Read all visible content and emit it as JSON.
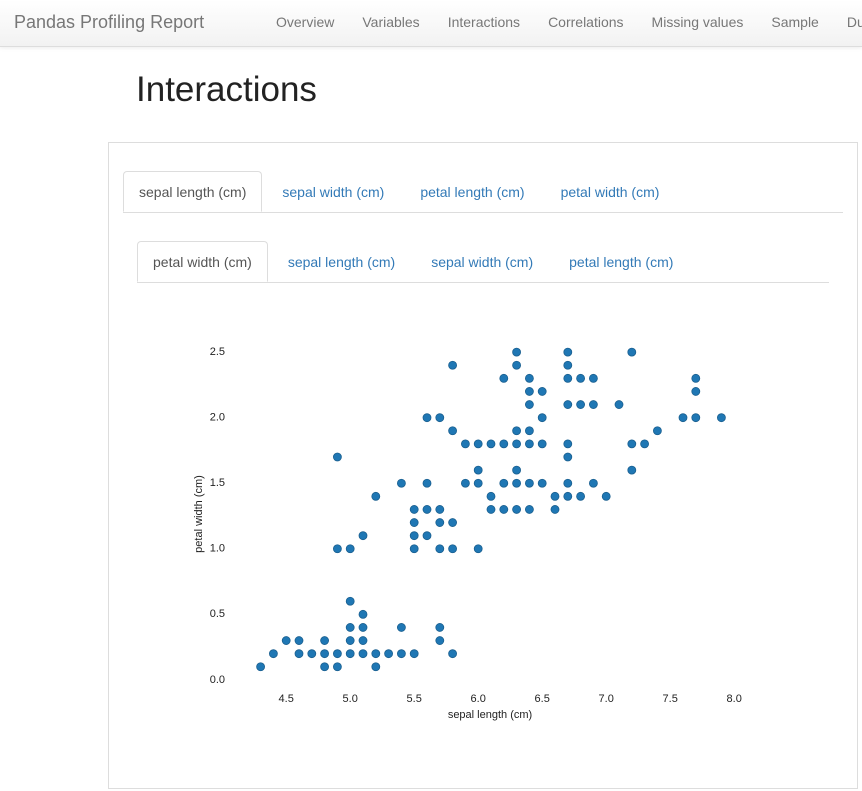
{
  "nav": {
    "brand": "Pandas Profiling Report",
    "items": [
      "Overview",
      "Variables",
      "Interactions",
      "Correlations",
      "Missing values",
      "Sample",
      "Duplicate rows"
    ]
  },
  "heading": "Interactions",
  "tabs": {
    "outer": [
      "sepal length (cm)",
      "sepal width (cm)",
      "petal length (cm)",
      "petal width (cm)"
    ],
    "inner": [
      "petal width (cm)",
      "sepal length (cm)",
      "sepal width (cm)",
      "petal length (cm)"
    ]
  },
  "chart_data": {
    "type": "scatter",
    "xlabel": "sepal length (cm)",
    "ylabel": "petal width (cm)",
    "color": "#1f77b4",
    "x": [
      4.3,
      4.8,
      4.9,
      5.2,
      4.4,
      4.6,
      4.7,
      4.8,
      4.9,
      5.0,
      5.1,
      5.2,
      5.3,
      5.4,
      5.5,
      5.8,
      4.5,
      4.6,
      4.8,
      5.0,
      5.1,
      5.7,
      5.0,
      5.1,
      5.4,
      5.7,
      5.1,
      5.0,
      4.9,
      5.0,
      5.5,
      5.7,
      5.8,
      6.0,
      5.1,
      5.5,
      5.6,
      5.5,
      5.7,
      5.8,
      5.5,
      5.6,
      5.7,
      6.1,
      6.2,
      6.3,
      6.4,
      6.6,
      5.2,
      6.1,
      6.6,
      6.7,
      6.8,
      7.0,
      5.4,
      5.6,
      5.9,
      6.0,
      6.2,
      6.3,
      6.4,
      6.5,
      6.7,
      6.9,
      6.0,
      6.3,
      7.2,
      4.9,
      6.7,
      5.9,
      6.0,
      6.1,
      6.2,
      6.3,
      6.4,
      6.5,
      6.7,
      7.2,
      7.3,
      5.8,
      6.3,
      6.4,
      7.4,
      5.6,
      5.7,
      6.5,
      7.6,
      7.7,
      7.9,
      6.4,
      6.7,
      6.8,
      6.9,
      7.1,
      6.4,
      6.5,
      7.7,
      6.2,
      6.4,
      6.7,
      6.8,
      6.9,
      7.7,
      5.8,
      6.3,
      6.7,
      6.3,
      6.7,
      7.2
    ],
    "y": [
      0.1,
      0.1,
      0.1,
      0.1,
      0.2,
      0.2,
      0.2,
      0.2,
      0.2,
      0.2,
      0.2,
      0.2,
      0.2,
      0.2,
      0.2,
      0.2,
      0.3,
      0.3,
      0.3,
      0.3,
      0.3,
      0.3,
      0.4,
      0.4,
      0.4,
      0.4,
      0.5,
      0.6,
      1.0,
      1.0,
      1.0,
      1.0,
      1.0,
      1.0,
      1.1,
      1.1,
      1.1,
      1.2,
      1.2,
      1.2,
      1.3,
      1.3,
      1.3,
      1.3,
      1.3,
      1.3,
      1.3,
      1.3,
      1.4,
      1.4,
      1.4,
      1.4,
      1.4,
      1.4,
      1.5,
      1.5,
      1.5,
      1.5,
      1.5,
      1.5,
      1.5,
      1.5,
      1.5,
      1.5,
      1.6,
      1.6,
      1.6,
      1.7,
      1.7,
      1.8,
      1.8,
      1.8,
      1.8,
      1.8,
      1.8,
      1.8,
      1.8,
      1.8,
      1.8,
      1.9,
      1.9,
      1.9,
      1.9,
      2.0,
      2.0,
      2.0,
      2.0,
      2.0,
      2.0,
      2.1,
      2.1,
      2.1,
      2.1,
      2.1,
      2.2,
      2.2,
      2.2,
      2.3,
      2.3,
      2.3,
      2.3,
      2.3,
      2.3,
      2.4,
      2.4,
      2.4,
      2.5,
      2.5,
      2.5
    ],
    "xlim": [
      4.1,
      8.1
    ],
    "ylim": [
      -0.1,
      2.6
    ],
    "xticks": [
      4.5,
      {
        "value": 5,
        "label": "5.0"
      },
      5.5,
      {
        "value": 6,
        "label": "6.0"
      },
      6.5,
      {
        "value": 7,
        "label": "7.0"
      },
      7.5,
      {
        "value": 8,
        "label": "8.0"
      }
    ],
    "yticks": [
      {
        "value": 0,
        "label": "0.0"
      },
      0.5,
      {
        "value": 1,
        "label": "1.0"
      },
      1.5,
      {
        "value": 2,
        "label": "2.0"
      },
      2.5
    ]
  }
}
